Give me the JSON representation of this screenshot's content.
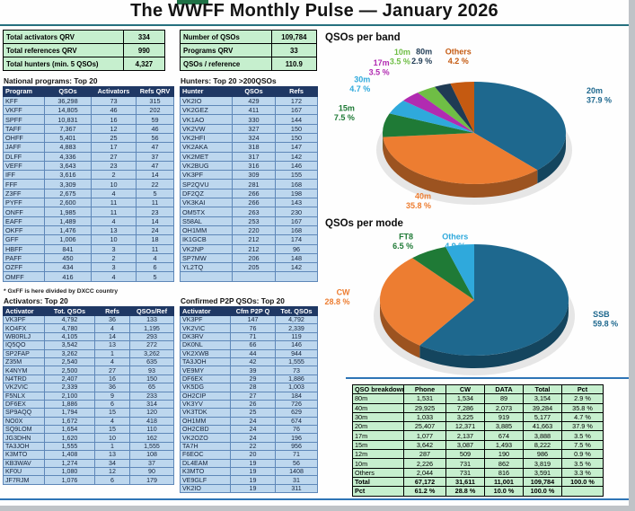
{
  "page": {
    "title": "The WWFF Monthly Pulse — January 2026"
  },
  "summary_left": {
    "rows": [
      [
        "Total activators QRV",
        "334"
      ],
      [
        "Total references QRV",
        "990"
      ],
      [
        "Total hunters (min. 5 QSOs)",
        "4,327"
      ]
    ]
  },
  "summary_right": {
    "rows": [
      [
        "Number of QSOs",
        "109,784"
      ],
      [
        "Programs QRV",
        "33"
      ],
      [
        "QSOs / reference",
        "110.9"
      ]
    ]
  },
  "sections": {
    "national": {
      "title": "National programs: Top 20",
      "headers": [
        "Program",
        "QSOs",
        "Activators",
        "Refs QRV"
      ],
      "rows": [
        [
          "KFF",
          "36,298",
          "73",
          "315"
        ],
        [
          "VKFF",
          "14,805",
          "46",
          "202"
        ],
        [
          "SPFF",
          "10,831",
          "16",
          "59"
        ],
        [
          "TAFF",
          "7,367",
          "12",
          "46"
        ],
        [
          "OHFF",
          "5,401",
          "25",
          "56"
        ],
        [
          "JAFF",
          "4,883",
          "17",
          "47"
        ],
        [
          "DLFF",
          "4,336",
          "27",
          "37"
        ],
        [
          "VEFF",
          "3,643",
          "23",
          "47"
        ],
        [
          "IFF",
          "3,616",
          "2",
          "14"
        ],
        [
          "FFF",
          "3,309",
          "10",
          "22"
        ],
        [
          "Z3FF",
          "2,675",
          "4",
          "5"
        ],
        [
          "PYFF",
          "2,600",
          "11",
          "11"
        ],
        [
          "ONFF",
          "1,985",
          "11",
          "23"
        ],
        [
          "EAFF",
          "1,489",
          "4",
          "14"
        ],
        [
          "OKFF",
          "1,476",
          "13",
          "24"
        ],
        [
          "GFF",
          "1,006",
          "10",
          "18"
        ],
        [
          "HBFF",
          "841",
          "3",
          "11"
        ],
        [
          "PAFF",
          "450",
          "2",
          "4"
        ],
        [
          "OZFF",
          "434",
          "3",
          "6"
        ],
        [
          "OMFF",
          "416",
          "4",
          "5"
        ]
      ]
    },
    "footnote": "* GxFF is here divided by DXCC country",
    "hunters": {
      "title": "Hunters: Top 20 >200QSOs",
      "headers": [
        "Hunter",
        "QSOs",
        "Refs"
      ],
      "rows": [
        [
          "VK2IO",
          "429",
          "172"
        ],
        [
          "VK2GEZ",
          "411",
          "167"
        ],
        [
          "VK1AO",
          "330",
          "144"
        ],
        [
          "VK2VW",
          "327",
          "150"
        ],
        [
          "VK2HFI",
          "324",
          "150"
        ],
        [
          "VK2AKA",
          "318",
          "147"
        ],
        [
          "VK2MET",
          "317",
          "142"
        ],
        [
          "VK2BUG",
          "316",
          "146"
        ],
        [
          "VK3PF",
          "309",
          "155"
        ],
        [
          "SP2QVU",
          "281",
          "168"
        ],
        [
          "DF2QZ",
          "266",
          "198"
        ],
        [
          "VK3KAI",
          "266",
          "143"
        ],
        [
          "OM5TX",
          "263",
          "230"
        ],
        [
          "S58AL",
          "253",
          "167"
        ],
        [
          "OH1MM",
          "220",
          "168"
        ],
        [
          "IK1GCB",
          "212",
          "174"
        ],
        [
          "VK2NP",
          "212",
          "96"
        ],
        [
          "SP7MW",
          "206",
          "148"
        ],
        [
          "YL2TQ",
          "205",
          "142"
        ],
        [
          "",
          "",
          ""
        ]
      ]
    },
    "activators": {
      "title": "Activators: Top 20",
      "headers": [
        "Activator",
        "Tot. QSOs",
        "Refs",
        "QSOs/Ref"
      ],
      "rows": [
        [
          "VK3PF",
          "4,792",
          "36",
          "133"
        ],
        [
          "KO4FX",
          "4,780",
          "4",
          "1,195"
        ],
        [
          "WB0RLJ",
          "4,105",
          "14",
          "293"
        ],
        [
          "IQ5QO",
          "3,542",
          "13",
          "272"
        ],
        [
          "SP2FAP",
          "3,262",
          "1",
          "3,262"
        ],
        [
          "Z35M",
          "2,540",
          "4",
          "635"
        ],
        [
          "K4NYM",
          "2,500",
          "27",
          "93"
        ],
        [
          "N4TRD",
          "2,407",
          "16",
          "150"
        ],
        [
          "VK2VIC",
          "2,339",
          "36",
          "65"
        ],
        [
          "F5NLX",
          "2,100",
          "9",
          "233"
        ],
        [
          "DF6EX",
          "1,886",
          "6",
          "314"
        ],
        [
          "SP9AQQ",
          "1,794",
          "15",
          "120"
        ],
        [
          "NO0X",
          "1,672",
          "4",
          "418"
        ],
        [
          "SQ9LOM",
          "1,654",
          "15",
          "110"
        ],
        [
          "JG3DHN",
          "1,620",
          "10",
          "162"
        ],
        [
          "TA3JOH",
          "1,555",
          "1",
          "1,555"
        ],
        [
          "K3MTO",
          "1,408",
          "13",
          "108"
        ],
        [
          "KB3WAV",
          "1,274",
          "34",
          "37"
        ],
        [
          "KF0U",
          "1,080",
          "12",
          "90"
        ],
        [
          "JF7RJM",
          "1,076",
          "6",
          "179"
        ]
      ]
    },
    "p2p": {
      "title": "Confirmed P2P QSOs: Top 20",
      "headers": [
        "Activator",
        "Cfm P2P Q",
        "Tot. QSOs"
      ],
      "rows": [
        [
          "VK3PF",
          "147",
          "4,792"
        ],
        [
          "VK2VIC",
          "76",
          "2,339"
        ],
        [
          "DK3RV",
          "71",
          "119"
        ],
        [
          "DK0NL",
          "66",
          "146"
        ],
        [
          "VK2XWB",
          "44",
          "944"
        ],
        [
          "TA3JOH",
          "42",
          "1,555"
        ],
        [
          "VE9MY",
          "39",
          "73"
        ],
        [
          "DF6EX",
          "29",
          "1,886"
        ],
        [
          "VK5DG",
          "28",
          "1,003"
        ],
        [
          "OH2CIP",
          "27",
          "184"
        ],
        [
          "VK3YV",
          "26",
          "726"
        ],
        [
          "VK3TDK",
          "25",
          "629"
        ],
        [
          "OH1MM",
          "24",
          "674"
        ],
        [
          "OH2CBD",
          "24",
          "76"
        ],
        [
          "VK2OZO",
          "24",
          "196"
        ],
        [
          "TA7H",
          "22",
          "956"
        ],
        [
          "F6EOC",
          "20",
          "71"
        ],
        [
          "DL4EAM",
          "19",
          "56"
        ],
        [
          "K3MTO",
          "19",
          "1408"
        ],
        [
          "VE9GLF",
          "19",
          "31"
        ],
        [
          "VK2IO",
          "19",
          "311"
        ]
      ]
    },
    "breakdown": {
      "headers": [
        "QSO breakdown",
        "Phone",
        "CW",
        "DATA",
        "Total",
        "Pct"
      ],
      "rows": [
        [
          "80m",
          "1,531",
          "1,534",
          "89",
          "3,154",
          "2.9 %"
        ],
        [
          "40m",
          "29,925",
          "7,286",
          "2,073",
          "39,284",
          "35.8 %"
        ],
        [
          "30m",
          "1,033",
          "3,225",
          "919",
          "5,177",
          "4.7 %"
        ],
        [
          "20m",
          "25,407",
          "12,371",
          "3,885",
          "41,663",
          "37.9 %"
        ],
        [
          "17m",
          "1,077",
          "2,137",
          "674",
          "3,888",
          "3.5 %"
        ],
        [
          "15m",
          "3,642",
          "3,087",
          "1,493",
          "8,222",
          "7.5 %"
        ],
        [
          "12m",
          "287",
          "509",
          "190",
          "986",
          "0.9 %"
        ],
        [
          "10m",
          "2,226",
          "731",
          "862",
          "3,819",
          "3.5 %"
        ],
        [
          "Others",
          "2,044",
          "731",
          "816",
          "3,591",
          "3.3 %"
        ],
        [
          "Total",
          "67,172",
          "31,611",
          "11,001",
          "109,784",
          "100.0 %"
        ],
        [
          "Pct",
          "61.2 %",
          "28.8 %",
          "10.0 %",
          "100.0 %",
          ""
        ]
      ],
      "bold_rows": [
        9,
        10
      ]
    }
  },
  "chart_data": [
    {
      "type": "pie",
      "title": "QSOs per band",
      "legend_position": "around",
      "slices": [
        {
          "label": "20m",
          "pct": 37.9,
          "pct_label": "37.9 %",
          "color": "#1E688E"
        },
        {
          "label": "40m",
          "pct": 35.8,
          "pct_label": "35.8 %",
          "color": "#ED7D31"
        },
        {
          "label": "15m",
          "pct": 7.5,
          "pct_label": "7.5 %",
          "color": "#1F7A36"
        },
        {
          "label": "30m",
          "pct": 4.7,
          "pct_label": "4.7 %",
          "color": "#2FA9DC"
        },
        {
          "label": "17m",
          "pct": 3.5,
          "pct_label": "3.5 %",
          "color": "#B12BB1"
        },
        {
          "label": "10m",
          "pct": 3.5,
          "pct_label": "3.5 %",
          "color": "#6FBE45"
        },
        {
          "label": "80m",
          "pct": 2.9,
          "pct_label": "2.9 %",
          "color": "#1F3B54"
        },
        {
          "label": "Others",
          "pct": 4.2,
          "pct_label": "4.2 %",
          "color": "#C55A11"
        }
      ]
    },
    {
      "type": "pie",
      "title": "QSOs per mode",
      "legend_position": "around",
      "slices": [
        {
          "label": "SSB",
          "pct": 59.8,
          "pct_label": "59.8 %",
          "color": "#1E688E"
        },
        {
          "label": "CW",
          "pct": 28.8,
          "pct_label": "28.8 %",
          "color": "#ED7D31"
        },
        {
          "label": "FT8",
          "pct": 6.5,
          "pct_label": "6.5 %",
          "color": "#1F7A36"
        },
        {
          "label": "Others",
          "pct": 4.9,
          "pct_label": "4.9 %",
          "color": "#2FA9DC"
        }
      ]
    }
  ]
}
